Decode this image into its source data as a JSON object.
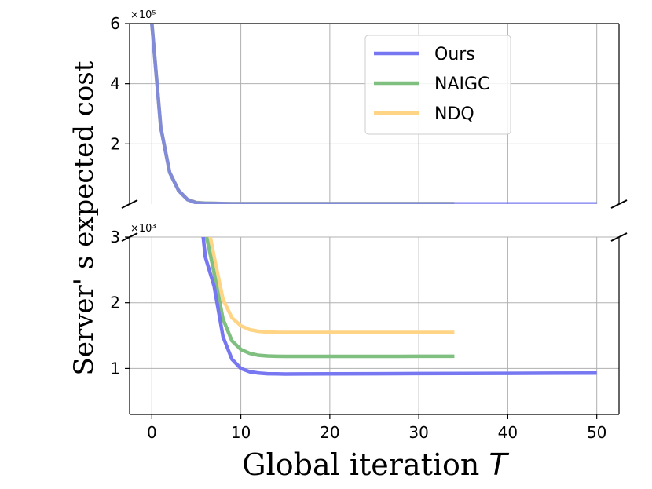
{
  "chart_data": {
    "type": "line",
    "xlabel": "Global iteration",
    "xlabel_symbol": "T",
    "ylabel": "Server' s expected cost",
    "x_ticks": [
      0,
      10,
      20,
      30,
      40,
      50
    ],
    "xlim": [
      -2.5,
      52.5
    ],
    "broken_axis": true,
    "grid": true,
    "legend_position": "top-right of upper panel",
    "upper_panel": {
      "exponent_label": "×10⁵",
      "ylim": [
        0,
        600000
      ],
      "y_ticks": [
        200000,
        400000,
        600000
      ],
      "y_tick_labels": [
        "2",
        "4",
        "6"
      ]
    },
    "lower_panel": {
      "exponent_label": "×10³",
      "ylim": [
        300,
        3000
      ],
      "y_ticks": [
        1000,
        2000,
        3000
      ],
      "y_tick_labels": [
        "1",
        "2",
        "3"
      ]
    },
    "series": [
      {
        "name": "Ours",
        "color": "#7777f2",
        "x": [
          0,
          1,
          2,
          3,
          4,
          5,
          6,
          7,
          8,
          9,
          10,
          11,
          12,
          13,
          14,
          15,
          20,
          25,
          30,
          35,
          40,
          45,
          50
        ],
        "y": [
          600000,
          255000,
          105000,
          45000,
          15000,
          4000,
          2700,
          2250,
          1480,
          1140,
          1000,
          950,
          930,
          920,
          918,
          916,
          918,
          920,
          922,
          924,
          926,
          928,
          930
        ]
      },
      {
        "name": "NAIGC",
        "color": "#7fbf7f",
        "x": [
          0,
          1,
          2,
          3,
          4,
          5,
          6,
          7,
          8,
          9,
          10,
          11,
          12,
          13,
          14,
          15,
          20,
          25,
          30,
          34
        ],
        "y": [
          600000,
          255000,
          105000,
          45000,
          15000,
          5000,
          3100,
          2450,
          1750,
          1420,
          1290,
          1230,
          1200,
          1190,
          1186,
          1184,
          1184,
          1184,
          1185,
          1185
        ]
      },
      {
        "name": "NDQ",
        "color": "#ffd485",
        "x": [
          0,
          1,
          2,
          3,
          4,
          5,
          6,
          7,
          8,
          9,
          10,
          11,
          12,
          13,
          14,
          15,
          20,
          25,
          30,
          34
        ],
        "y": [
          600000,
          255000,
          105000,
          45000,
          15000,
          5500,
          3400,
          2700,
          2050,
          1770,
          1650,
          1590,
          1565,
          1555,
          1550,
          1548,
          1548,
          1548,
          1548,
          1548
        ]
      }
    ]
  }
}
